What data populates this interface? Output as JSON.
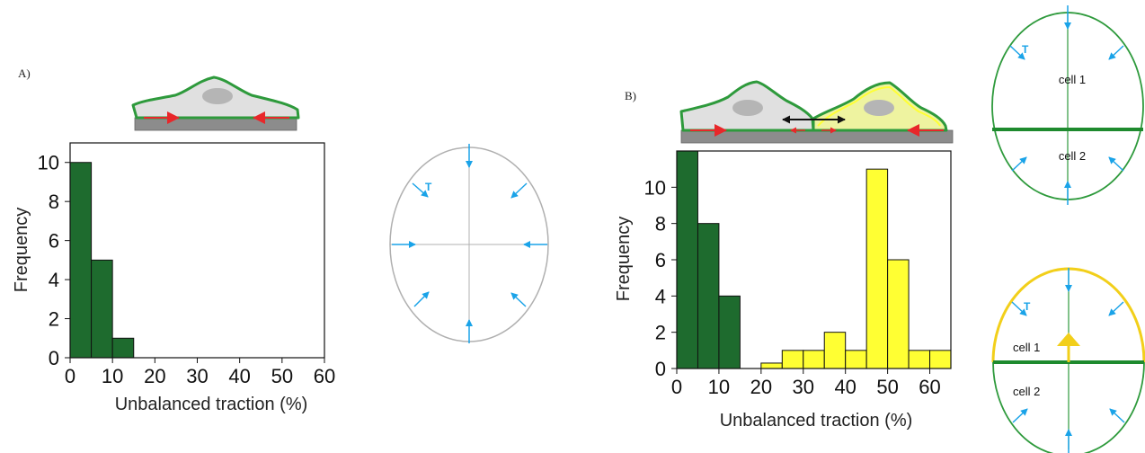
{
  "panels": {
    "a_label": "A)",
    "b_label": "B)"
  },
  "diagram_labels": {
    "traction_symbol": "T",
    "cell1": "cell 1",
    "cell2": "cell 2"
  },
  "colors": {
    "dark_green": "#1e6b2e",
    "yellow": "#ffff33",
    "arrow_blue": "#1aa3e8",
    "arrow_red": "#e8272a",
    "substrate": "#8c8c8c",
    "cell_outline_green": "#2e9a3c",
    "cell_fill": "#e0e0e0",
    "ellipse_gray": "#b0b0b0",
    "ellipse_green": "#2e9a3c",
    "ellipse_yellow": "#f2cf1a"
  },
  "chart_data": [
    {
      "type": "bar",
      "panel": "A",
      "xlabel": "Unbalanced traction (%)",
      "ylabel": "Frequency",
      "xlim": [
        0,
        60
      ],
      "ylim": [
        0,
        11
      ],
      "xticks": [
        0,
        10,
        20,
        30,
        40,
        50,
        60
      ],
      "yticks": [
        0,
        2,
        4,
        6,
        8,
        10
      ],
      "bin_width": 5,
      "series": [
        {
          "color": "#1e6b2e",
          "bins": [
            {
              "x": 0,
              "count": 10
            },
            {
              "x": 5,
              "count": 5
            },
            {
              "x": 10,
              "count": 1
            }
          ]
        }
      ]
    },
    {
      "type": "bar",
      "panel": "B",
      "xlabel": "Unbalanced traction (%)",
      "ylabel": "Frequency",
      "xlim": [
        0,
        65
      ],
      "ylim": [
        0,
        12
      ],
      "xticks": [
        0,
        10,
        20,
        30,
        40,
        50,
        60
      ],
      "yticks": [
        0,
        2,
        4,
        6,
        8,
        10
      ],
      "bin_width": 5,
      "series": [
        {
          "color": "#1e6b2e",
          "bins": [
            {
              "x": 0,
              "count": 12
            },
            {
              "x": 5,
              "count": 8
            },
            {
              "x": 10,
              "count": 4
            }
          ]
        },
        {
          "color": "#ffff33",
          "bins": [
            {
              "x": 20,
              "count": 0.3
            },
            {
              "x": 25,
              "count": 1
            },
            {
              "x": 30,
              "count": 1
            },
            {
              "x": 35,
              "count": 2
            },
            {
              "x": 40,
              "count": 1
            },
            {
              "x": 45,
              "count": 11
            },
            {
              "x": 50,
              "count": 6
            },
            {
              "x": 55,
              "count": 1
            },
            {
              "x": 60,
              "count": 1
            }
          ]
        }
      ]
    }
  ]
}
